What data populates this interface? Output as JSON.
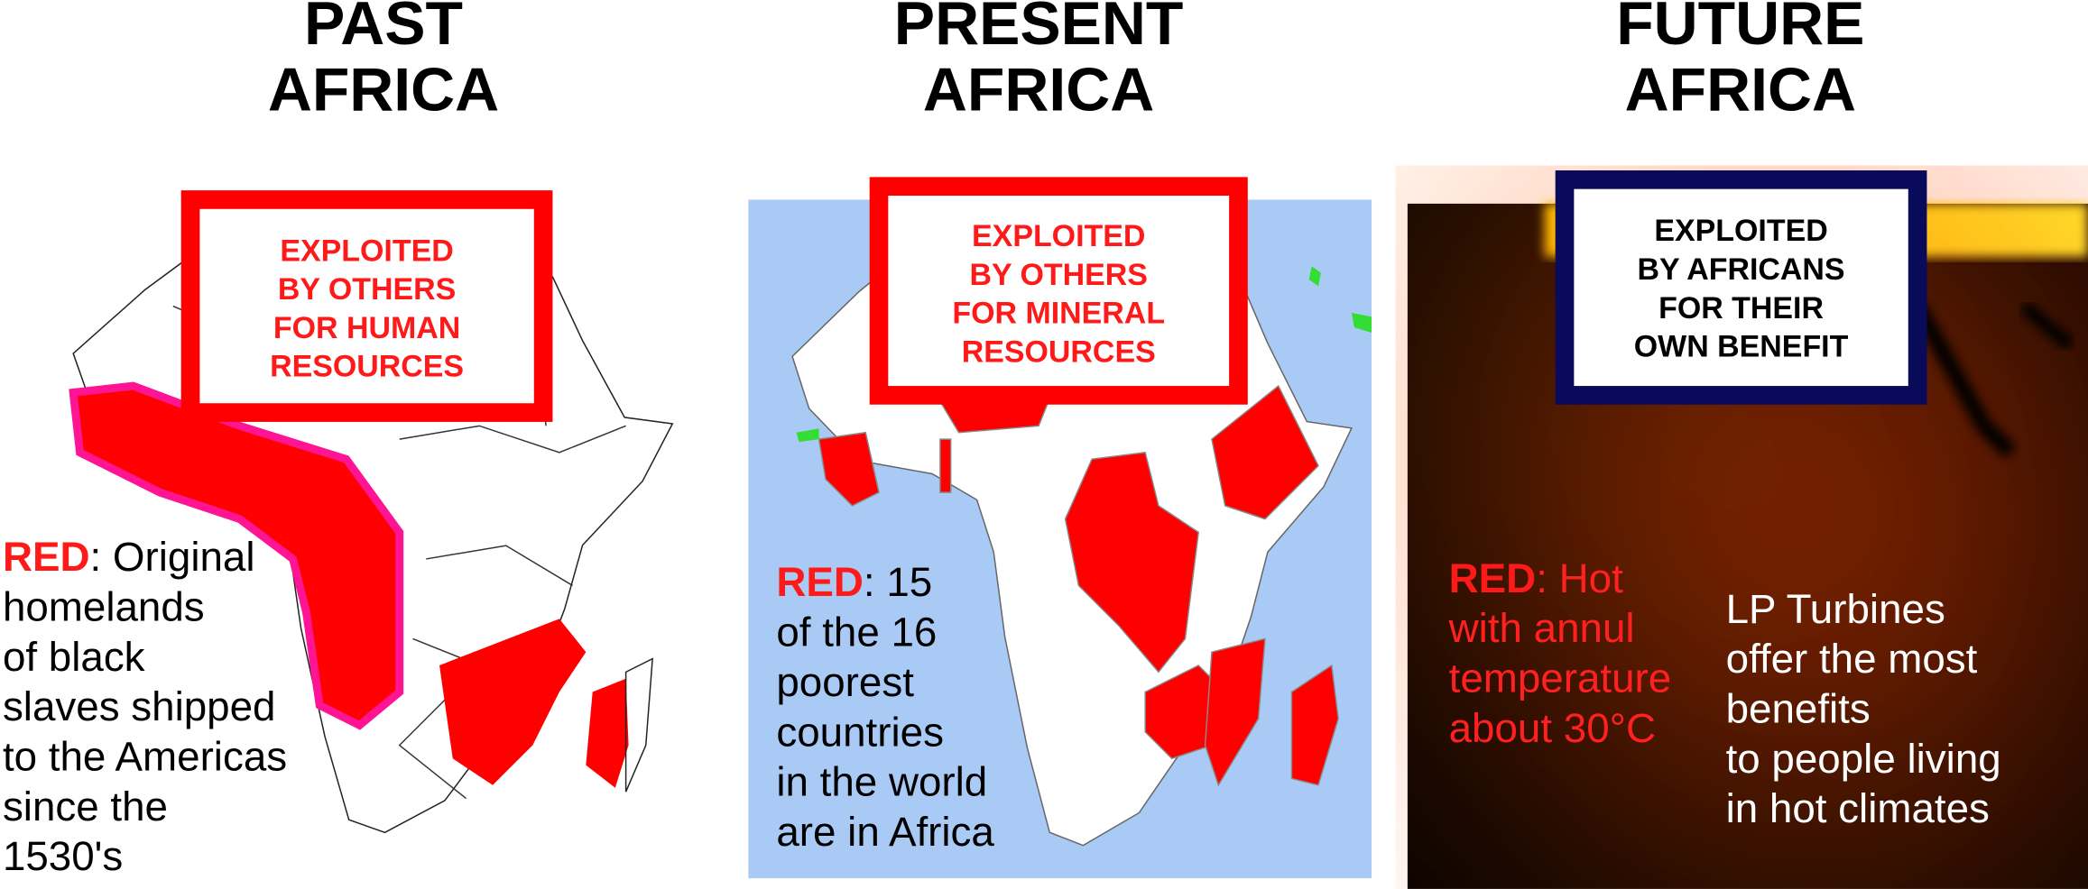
{
  "panels": [
    {
      "title": [
        "PAST",
        "AFRICA"
      ],
      "box": [
        "EXPLOITED",
        "BY OTHERS",
        "FOR HUMAN",
        "RESOURCES"
      ],
      "caption": {
        "highlight": "RED",
        "lines": [
          ": Original",
          "homelands",
          "of black",
          "slaves shipped",
          "to the Americas",
          "since the",
          "1530's"
        ]
      }
    },
    {
      "title": [
        "PRESENT",
        "AFRICA"
      ],
      "box": [
        "EXPLOITED",
        "BY OTHERS",
        "FOR MINERAL",
        "RESOURCES"
      ],
      "caption": {
        "highlight": "RED",
        "lines": [
          ": 15",
          "of the 16",
          "poorest",
          "countries",
          "in the world",
          "are in Africa"
        ]
      }
    },
    {
      "title": [
        "FUTURE",
        "AFRICA"
      ],
      "box": [
        "EXPLOITED",
        "BY AFRICANS",
        "FOR THEIR",
        "OWN BENEFIT"
      ],
      "caption": {
        "highlight": "RED",
        "lines": [
          ": Hot",
          "with annul",
          "temperature",
          "about 30°C"
        ]
      },
      "note": [
        "LP Turbines",
        "offer the most",
        "benefits",
        "to people living",
        "in hot climates"
      ]
    }
  ]
}
